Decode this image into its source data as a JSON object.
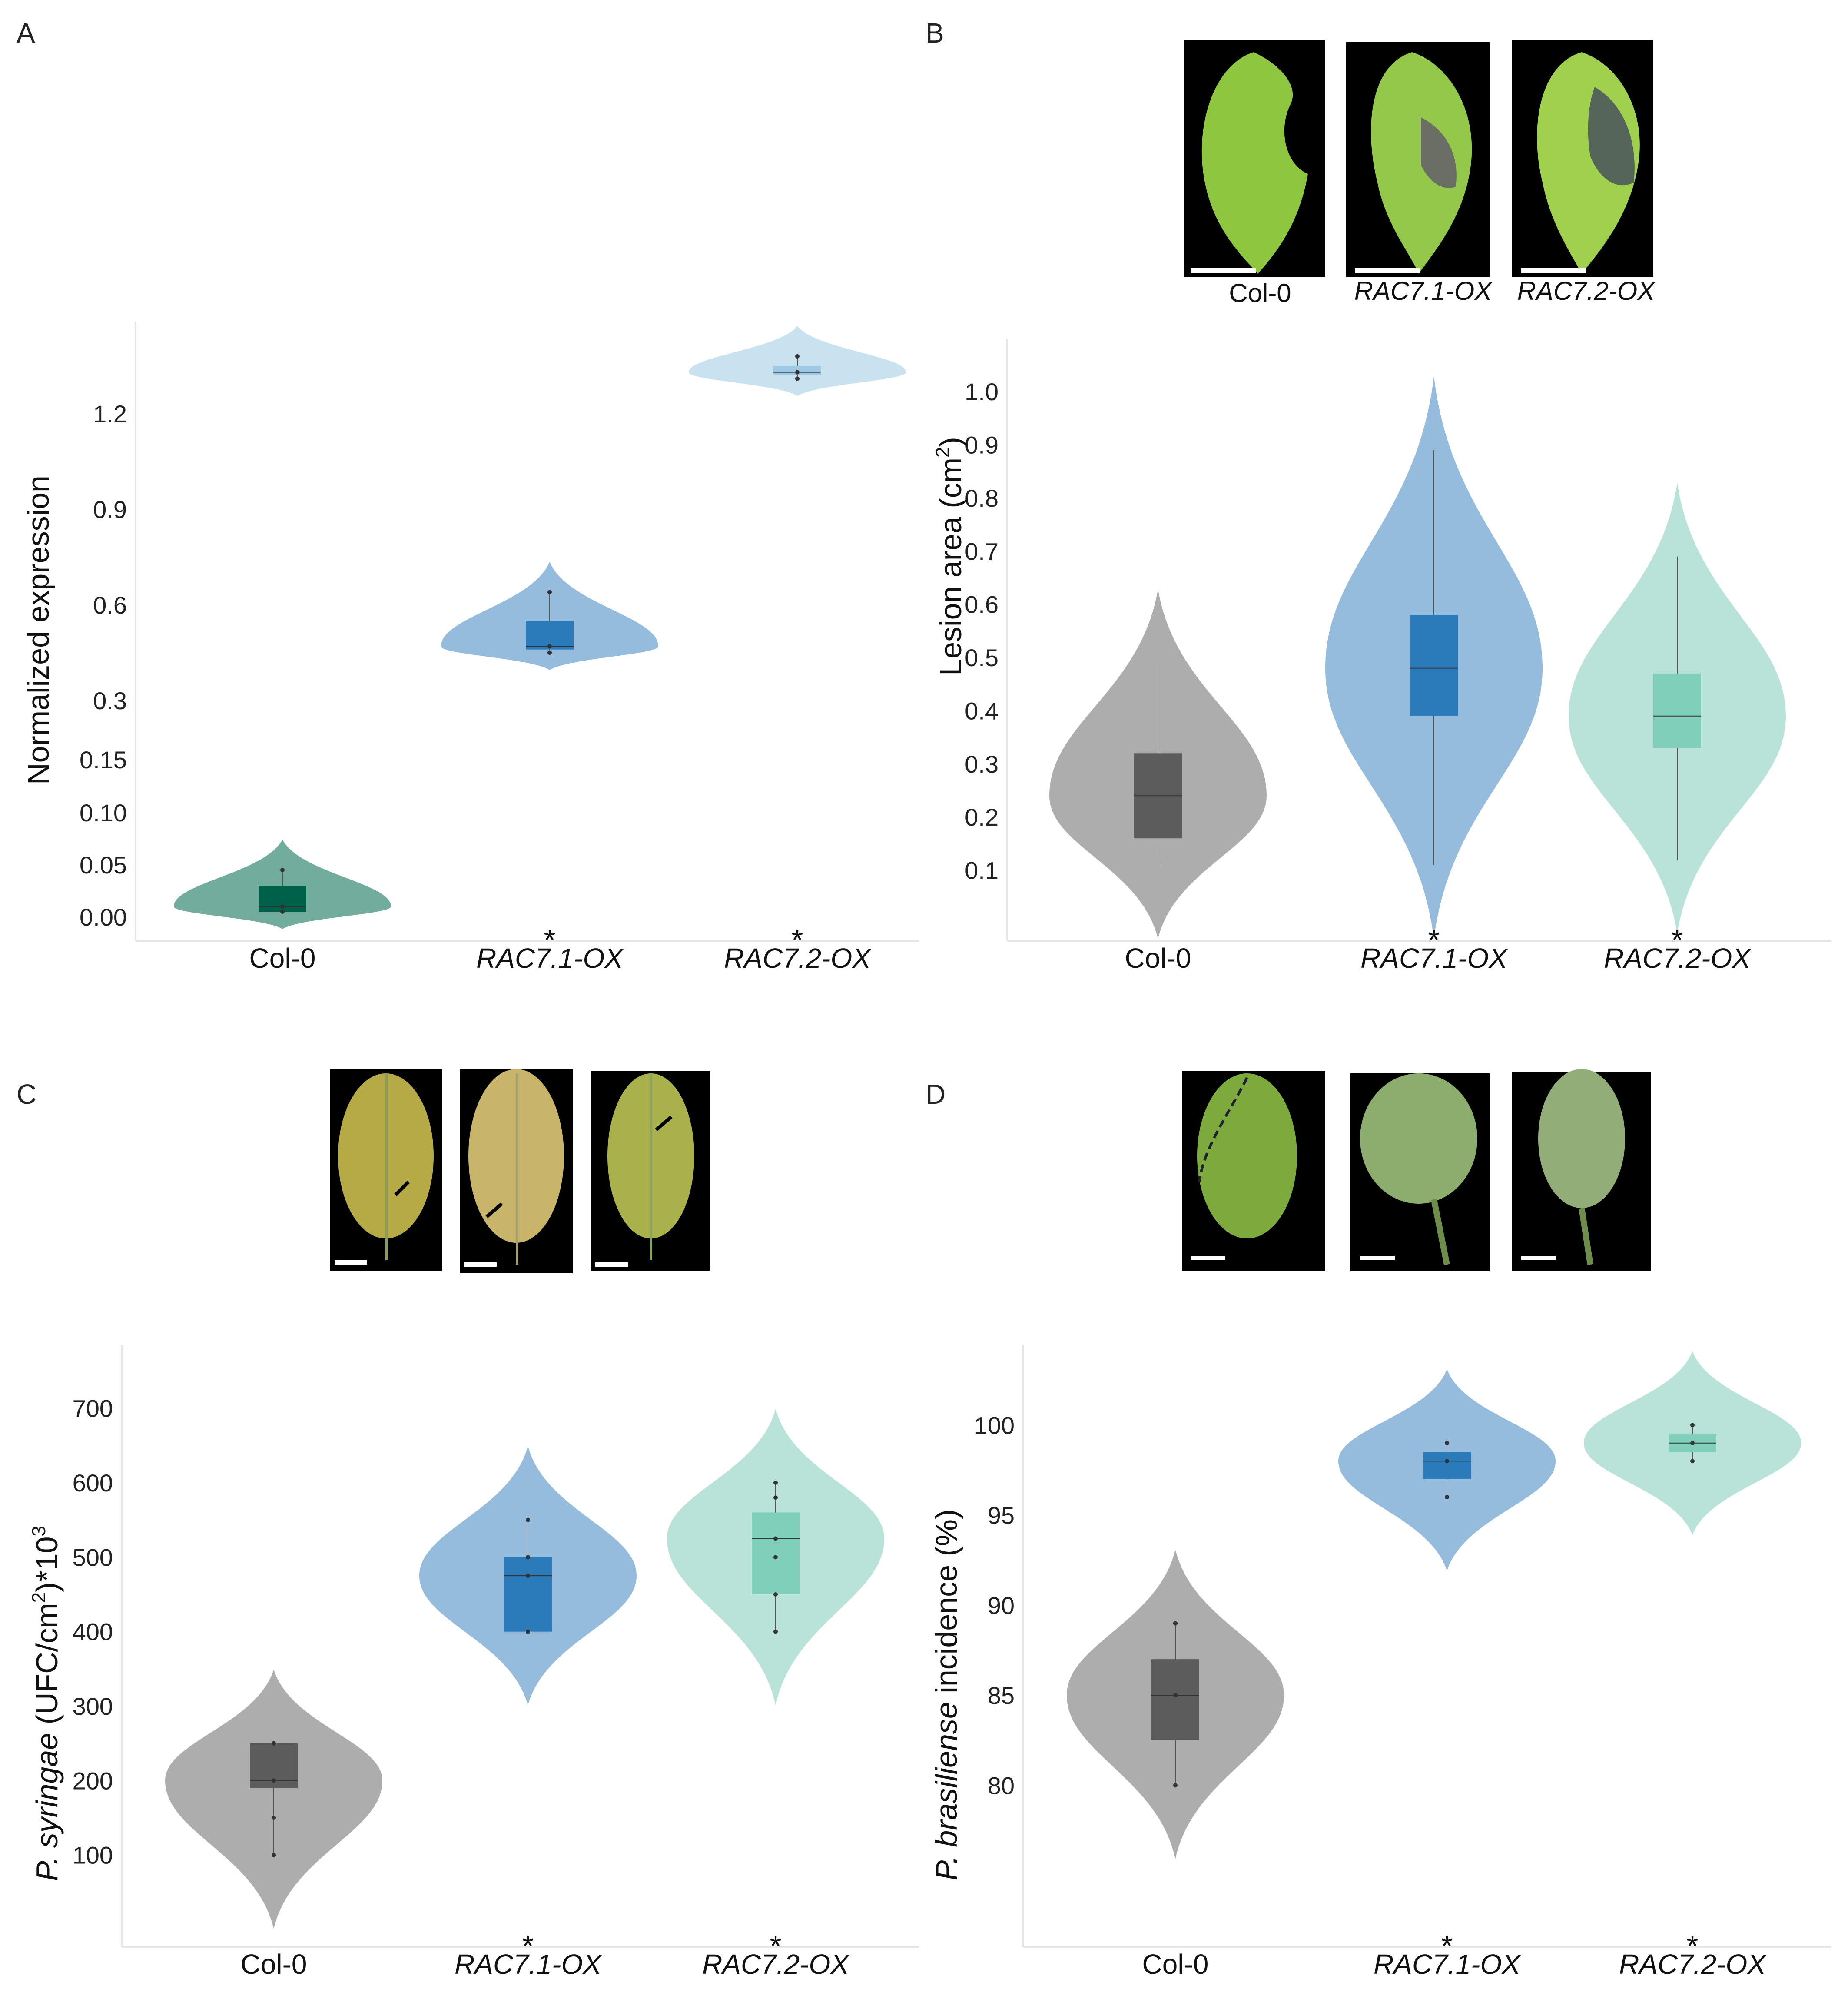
{
  "panels": {
    "A": {
      "letter": "A"
    },
    "B": {
      "letter": "B",
      "photo_captions": [
        "Col-0",
        "RAC7.1-OX",
        "RAC7.2-OX"
      ]
    },
    "C": {
      "letter": "C"
    },
    "D": {
      "letter": "D"
    }
  },
  "colors": {
    "col0_violin": "#a9a9a9",
    "col0_box": "#5c5c5c",
    "rac71_violin": "#8fb8da",
    "rac71_box": "#2b7bba",
    "rac72_violin": "#b5e2d6",
    "rac72_box": "#7fcfba",
    "A_col0_violin": "#6aa898",
    "A_col0_box": "#00614a",
    "A_rac72_violin": "#c6e0ef",
    "A_rac72_box": "#9fcbe6"
  },
  "chart_data": [
    {
      "id": "A",
      "type": "violin",
      "ylabel": "Normalized expression",
      "categories": [
        "Col-0",
        "RAC7.1-OX",
        "RAC7.2-OX"
      ],
      "categories_italic": [
        false,
        true,
        true
      ],
      "yticks": [
        "0.00",
        "0.05",
        "0.10",
        "0.15",
        "0.3",
        "0.6",
        "0.9",
        "1.2"
      ],
      "significance": [
        "",
        "*",
        "*"
      ],
      "series": [
        {
          "name": "Col-0",
          "median": 0.01,
          "q1": 0.005,
          "q3": 0.03,
          "min": 0.005,
          "max": 0.045,
          "points": [
            0.005,
            0.01,
            0.045
          ]
        },
        {
          "name": "RAC7.1-OX",
          "median": 0.47,
          "q1": 0.46,
          "q3": 0.55,
          "min": 0.45,
          "max": 0.64,
          "points": [
            0.45,
            0.47,
            0.64
          ]
        },
        {
          "name": "RAC7.2-OX",
          "median": 1.33,
          "q1": 1.32,
          "q3": 1.35,
          "min": 1.31,
          "max": 1.38,
          "points": [
            1.31,
            1.33,
            1.38
          ]
        }
      ]
    },
    {
      "id": "B",
      "type": "violin",
      "ylabel": "Lesion area (cm",
      "ylabel_sup": "2",
      "ylabel_end": ")",
      "categories": [
        "Col-0",
        "RAC7.1-OX",
        "RAC7.2-OX"
      ],
      "categories_italic": [
        false,
        true,
        true
      ],
      "yticks": [
        "0.1",
        "0.2",
        "0.3",
        "0.4",
        "0.5",
        "0.6",
        "0.7",
        "0.8",
        "0.9",
        "1.0"
      ],
      "ylim": [
        0.0,
        1.05
      ],
      "significance": [
        "",
        "*",
        "*"
      ],
      "series": [
        {
          "name": "Col-0",
          "median": 0.24,
          "q1": 0.16,
          "q3": 0.32,
          "min": 0.11,
          "max": 0.49
        },
        {
          "name": "RAC7.1-OX",
          "median": 0.48,
          "q1": 0.39,
          "q3": 0.58,
          "min": 0.11,
          "max": 0.89
        },
        {
          "name": "RAC7.2-OX",
          "median": 0.39,
          "q1": 0.33,
          "q3": 0.47,
          "min": 0.12,
          "max": 0.69
        }
      ]
    },
    {
      "id": "C",
      "type": "violin",
      "ylabel": "P. syringae",
      "ylabel_rest": " (UFC/cm",
      "ylabel_sup": "2",
      "ylabel_end": ")*10",
      "ylabel_sup2": "3",
      "categories": [
        "Col-0",
        "RAC7.1-OX",
        "RAC7.2-OX"
      ],
      "categories_italic": [
        false,
        true,
        true
      ],
      "yticks": [
        "100",
        "200",
        "300",
        "400",
        "500",
        "600",
        "700"
      ],
      "ylim": [
        0,
        750
      ],
      "significance": [
        "",
        "*",
        "*"
      ],
      "series": [
        {
          "name": "Col-0",
          "median": 200,
          "q1": 190,
          "q3": 250,
          "min": 100,
          "max": 250,
          "points": [
            100,
            150,
            200,
            250,
            250
          ]
        },
        {
          "name": "RAC7.1-OX",
          "median": 475,
          "q1": 400,
          "q3": 500,
          "min": 400,
          "max": 550,
          "points": [
            400,
            400,
            475,
            500,
            550
          ]
        },
        {
          "name": "RAC7.2-OX",
          "median": 525,
          "q1": 450,
          "q3": 560,
          "min": 400,
          "max": 600,
          "points": [
            400,
            450,
            500,
            525,
            580,
            600
          ]
        }
      ]
    },
    {
      "id": "D",
      "type": "violin",
      "ylabel": "P. brasiliense",
      "ylabel_rest": " incidence (%)",
      "categories": [
        "Col-0",
        "RAC7.1-OX",
        "RAC7.2-OX"
      ],
      "categories_italic": [
        false,
        true,
        true
      ],
      "yticks": [
        "80",
        "85",
        "90",
        "95",
        "100"
      ],
      "ylim": [
        72,
        103
      ],
      "significance": [
        "",
        "*",
        "*"
      ],
      "series": [
        {
          "name": "Col-0",
          "median": 85,
          "q1": 82.5,
          "q3": 87,
          "min": 80,
          "max": 89,
          "points": [
            80,
            85,
            89
          ]
        },
        {
          "name": "RAC7.1-OX",
          "median": 98,
          "q1": 97,
          "q3": 98.5,
          "min": 96,
          "max": 99,
          "points": [
            96,
            98,
            99
          ]
        },
        {
          "name": "RAC7.2-OX",
          "median": 99,
          "q1": 98.5,
          "q3": 99.5,
          "min": 98,
          "max": 100,
          "points": [
            98,
            99,
            100
          ]
        }
      ]
    }
  ]
}
